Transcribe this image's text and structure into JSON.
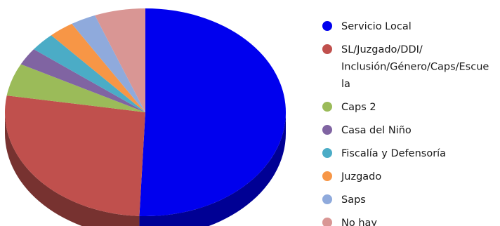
{
  "chart_data": {
    "type": "pie",
    "style": "3d",
    "title": "",
    "legend_position": "right",
    "slices": [
      {
        "label": "Servicio Local",
        "value": 52.0,
        "color": "#0000ee"
      },
      {
        "label": "SL/Juzgado/DDI/ Inclusión/Género/Caps/Escue la",
        "label_lines": [
          "SL/Juzgado/DDI/",
          "Inclusión/Género/Caps/Escue",
          "la"
        ],
        "value": 27.6,
        "color": "#c0504d"
      },
      {
        "label": "Caps 2",
        "value": 5.2,
        "color": "#9bbb59"
      },
      {
        "label": "Casa del Niño",
        "value": 2.8,
        "color": "#8064a2"
      },
      {
        "label": "Fiscalía y Defensoría",
        "value": 3.0,
        "color": "#4bacc6"
      },
      {
        "label": "Juzgado",
        "value": 3.0,
        "color": "#f79646"
      },
      {
        "label": "Saps",
        "value": 3.0,
        "color": "#8faadc"
      },
      {
        "label": "No hay",
        "value": 6.0,
        "color": "#d99694"
      }
    ]
  }
}
